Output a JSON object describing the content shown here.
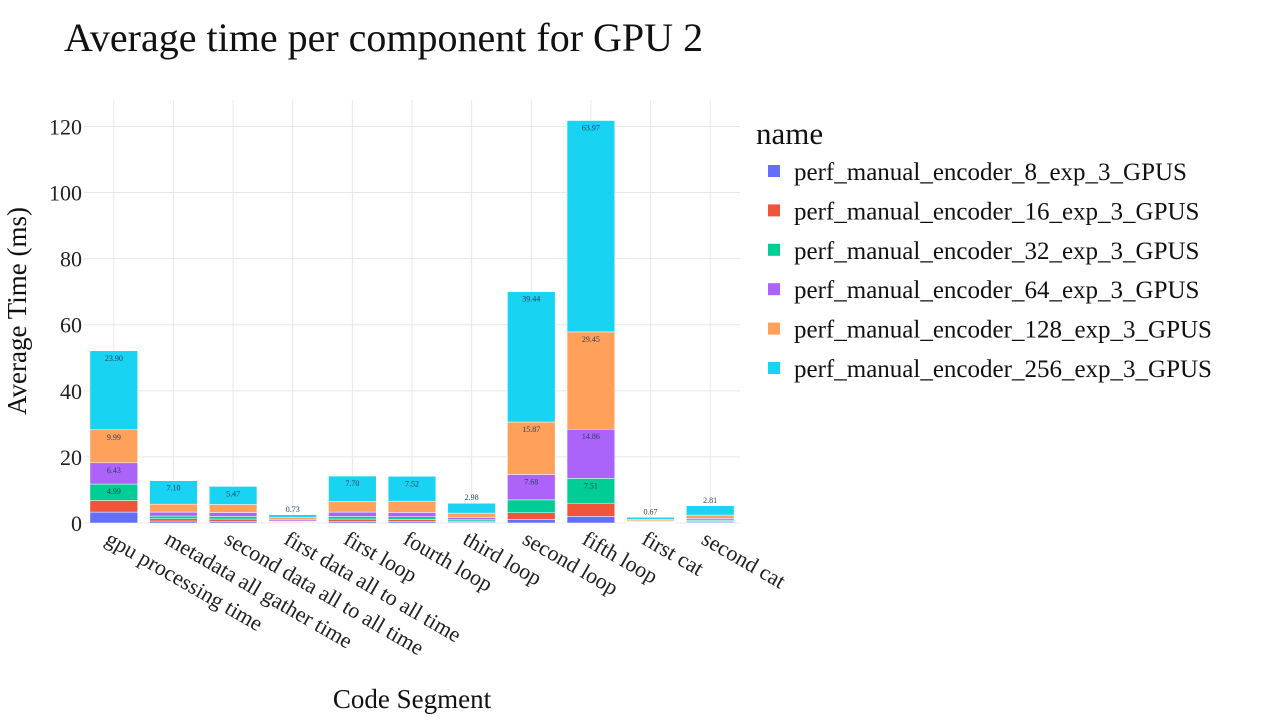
{
  "chart_data": {
    "type": "bar",
    "barmode": "stack",
    "title": "Average time per component for GPU 2",
    "xlabel": "Code Segment",
    "ylabel": "Average Time (ms)",
    "ylim": [
      0,
      128
    ],
    "yticks": [
      0,
      20,
      40,
      60,
      80,
      100,
      120
    ],
    "grid": true,
    "legend_title": "name",
    "legend_position": "right",
    "categories": [
      "gpu processing time",
      "metadata all gather time",
      "second data all to all time",
      "first data all to all time",
      "first loop",
      "fourth loop",
      "third loop",
      "second loop",
      "fifth loop",
      "first cat",
      "second cat"
    ],
    "series": [
      {
        "name": "perf_manual_encoder_8_exp_3_GPUS",
        "color": "#636efa",
        "values": [
          3.3,
          0.6,
          0.5,
          0.15,
          0.5,
          0.5,
          0.3,
          1.1,
          2.0,
          0.15,
          0.3
        ],
        "labels": [
          "",
          "",
          "",
          "",
          "",
          "",
          "",
          "",
          "",
          "",
          ""
        ]
      },
      {
        "name": "perf_manual_encoder_16_exp_3_GPUS",
        "color": "#ef553b",
        "values": [
          3.5,
          0.7,
          0.7,
          0.2,
          0.7,
          0.6,
          0.3,
          2.0,
          4.0,
          0.15,
          0.3
        ],
        "labels": [
          "",
          "",
          "",
          "",
          "",
          "",
          "",
          "",
          "",
          "",
          ""
        ]
      },
      {
        "name": "perf_manual_encoder_32_exp_3_GPUS",
        "color": "#00cc96",
        "values": [
          4.99,
          0.8,
          0.8,
          0.2,
          0.8,
          0.8,
          0.4,
          3.9,
          7.51,
          0.15,
          0.3
        ],
        "labels": [
          "4.99",
          "",
          "",
          "",
          "",
          "",
          "",
          "",
          "7.51",
          "",
          ""
        ]
      },
      {
        "name": "perf_manual_encoder_64_exp_3_GPUS",
        "color": "#ab63fa",
        "values": [
          6.43,
          1.2,
          1.2,
          0.4,
          1.3,
          1.3,
          0.6,
          7.68,
          14.86,
          0.2,
          0.5
        ],
        "labels": [
          "6.43",
          "",
          "",
          "",
          "",
          "",
          "",
          "7.68",
          "14.86",
          "",
          ""
        ]
      },
      {
        "name": "perf_manual_encoder_128_exp_3_GPUS",
        "color": "#ffa15a",
        "values": [
          9.99,
          2.4,
          2.4,
          0.8,
          3.2,
          3.4,
          1.4,
          15.87,
          29.45,
          0.4,
          1.0
        ],
        "labels": [
          "9.99",
          "",
          "",
          "",
          "",
          "",
          "",
          "15.87",
          "29.45",
          "",
          ""
        ]
      },
      {
        "name": "perf_manual_encoder_256_exp_3_GPUS",
        "color": "#19d3f3",
        "values": [
          23.9,
          7.1,
          5.47,
          0.73,
          7.7,
          7.52,
          2.98,
          39.44,
          63.97,
          0.67,
          2.81
        ],
        "labels": [
          "23.90",
          "7.10",
          "5.47",
          "0.73",
          "7.70",
          "7.52",
          "2.98",
          "39.44",
          "63.97",
          "0.67",
          "2.81"
        ]
      }
    ]
  }
}
